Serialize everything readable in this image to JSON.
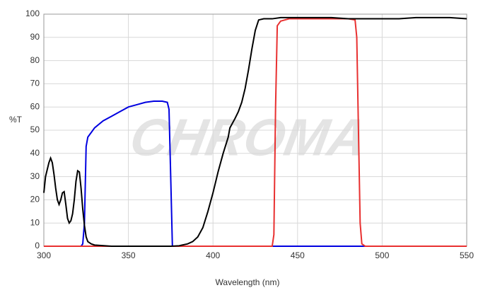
{
  "chart_data": {
    "type": "line",
    "x_label": "Wavelength (nm)",
    "y_label": "%T",
    "watermark": "CHROMA",
    "xlim": [
      300,
      550
    ],
    "xticks": [
      300,
      350,
      400,
      450,
      500,
      550
    ],
    "ylim": [
      0,
      100
    ],
    "yticks": [
      0,
      10,
      20,
      30,
      40,
      50,
      60,
      70,
      80,
      90,
      100
    ],
    "grid": true,
    "series": [
      {
        "color": "#0000e0",
        "x": [
          300,
          322,
          323,
          324,
          325,
          326,
          328,
          330,
          335,
          340,
          345,
          350,
          355,
          360,
          365,
          370,
          373,
          374,
          375,
          376,
          550
        ],
        "values": [
          0,
          0,
          1,
          10,
          43,
          47,
          49,
          51,
          54,
          56,
          58,
          60,
          61,
          62,
          62.5,
          62.5,
          62,
          59,
          30,
          0,
          0
        ]
      },
      {
        "color": "#e83030",
        "x": [
          300,
          435,
          436,
          437,
          438,
          440,
          445,
          450,
          460,
          470,
          480,
          484,
          485,
          486,
          487,
          488,
          490,
          550
        ],
        "values": [
          0,
          0,
          5,
          60,
          95,
          97,
          98,
          98,
          98,
          98,
          98,
          97.5,
          90,
          50,
          10,
          1,
          0,
          0
        ]
      },
      {
        "color": "#000000",
        "x": [
          300,
          301,
          302,
          303,
          304,
          305,
          306,
          307,
          308,
          309,
          310,
          311,
          312,
          313,
          314,
          315,
          316,
          317,
          318,
          319,
          320,
          321,
          322,
          323,
          324,
          325,
          326,
          328,
          330,
          340,
          360,
          375,
          380,
          385,
          388,
          391,
          394,
          397,
          400,
          403,
          406,
          409,
          410,
          413,
          415,
          417,
          419,
          421,
          423,
          425,
          427,
          430,
          435,
          440,
          450,
          460,
          470,
          480,
          490,
          500,
          510,
          520,
          530,
          540,
          550
        ],
        "values": [
          23,
          30,
          33,
          36,
          38,
          36,
          31,
          25,
          20,
          18,
          20,
          23,
          23.5,
          18,
          12,
          10,
          11,
          14,
          20,
          28,
          32.5,
          32,
          25,
          16,
          9,
          4,
          2,
          1,
          0.5,
          0,
          0,
          0,
          0.2,
          1,
          2,
          4,
          8,
          15,
          23,
          32,
          40,
          47,
          51,
          55,
          58,
          62,
          68,
          76,
          85,
          93,
          97.5,
          98,
          98,
          98.5,
          98.5,
          98.5,
          98.5,
          98,
          98,
          98,
          98,
          98.5,
          98.5,
          98.5,
          98
        ]
      }
    ]
  }
}
